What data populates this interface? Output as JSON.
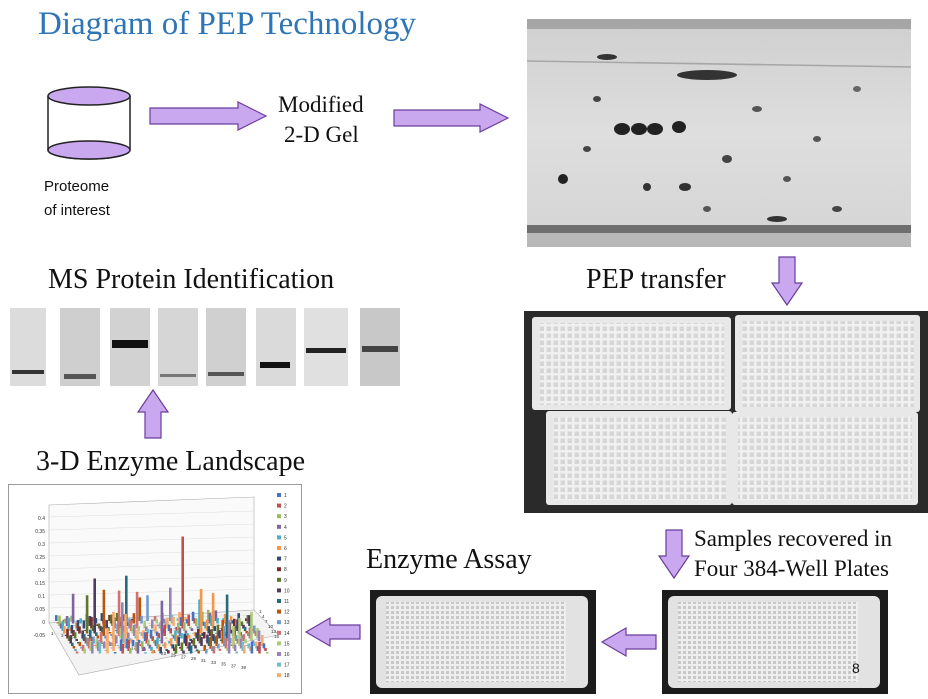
{
  "title": "Diagram of PEP Technology",
  "steps": {
    "proteome_line1": "Proteome",
    "proteome_line2": "of interest",
    "gel_line1": "Modified",
    "gel_line2": "2-D Gel",
    "pep_transfer": "PEP transfer",
    "samples_line1": "Samples recovered in",
    "samples_line2": "Four 384-Well Plates",
    "enzyme_assay": "Enzyme Assay",
    "landscape": "3-D Enzyme Landscape",
    "ms_identification": "MS Protein Identification"
  },
  "chart": {
    "y_ticks": [
      "0.4",
      "0.35",
      "0.3",
      "0.25",
      "0.2",
      "0.15",
      "0.1",
      "0.05",
      "0",
      "-0.05"
    ],
    "x_ticks": [
      "1",
      "3",
      "5",
      "7",
      "9",
      "11",
      "13",
      "15",
      "17",
      "19",
      "21",
      "23",
      "25",
      "27",
      "29",
      "31",
      "33",
      "35",
      "37",
      "39"
    ],
    "depth_ticks": [
      "1",
      "4",
      "7",
      "10",
      "13",
      "16"
    ],
    "legend": [
      "1",
      "2",
      "3",
      "4",
      "5",
      "6",
      "7",
      "8",
      "9",
      "10",
      "11",
      "12",
      "13",
      "14",
      "15",
      "16",
      "17",
      "18"
    ],
    "legend_colors": [
      "#4472c4",
      "#c0504d",
      "#9bbb59",
      "#8064a2",
      "#4bacc6",
      "#f79646",
      "#2c4d75",
      "#772c2a",
      "#5f7530",
      "#4d3b62",
      "#276a7c",
      "#b65708",
      "#729aca",
      "#cd7371",
      "#afc97a",
      "#9983b5",
      "#6fbdd1",
      "#f9ab6b"
    ]
  },
  "colors": {
    "arrow": "#c9a8f0",
    "arrow_stroke": "#6a3d9a",
    "cylinder": "#c9a8f0",
    "title": "#2e75b6"
  },
  "page_number": "8"
}
